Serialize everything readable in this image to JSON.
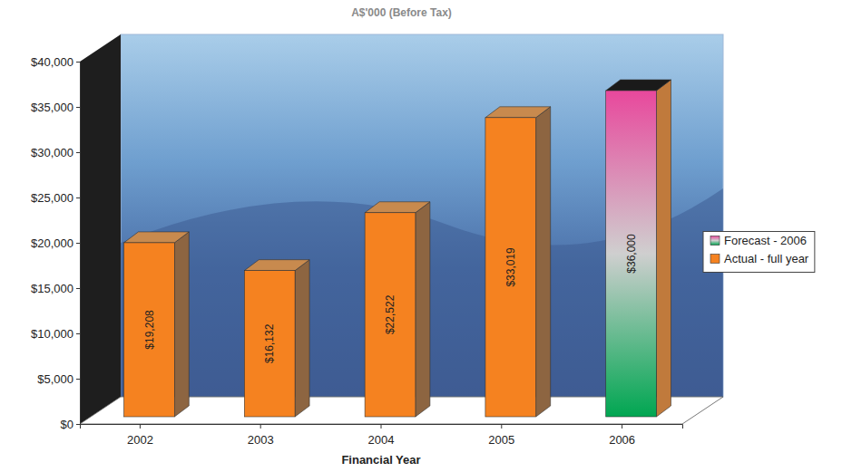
{
  "chart_data": {
    "type": "bar",
    "title": "A$'000 (Before Tax)",
    "xlabel": "Financial Year",
    "categories": [
      "2002",
      "2003",
      "2004",
      "2005",
      "2006"
    ],
    "series": [
      {
        "name": "Forecast - 2006",
        "color": "#e8489c",
        "values": [
          null,
          null,
          null,
          null,
          36000
        ],
        "value_labels": [
          null,
          null,
          null,
          null,
          "$36,000"
        ]
      },
      {
        "name": "Actual - full year",
        "color": "#f58220",
        "values": [
          19208,
          16132,
          22522,
          33019,
          null
        ],
        "value_labels": [
          "$19,208",
          "$16,132",
          "$22,522",
          "$33,019",
          null
        ]
      }
    ],
    "ylim": [
      0,
      40000
    ],
    "yticks": [
      {
        "value": 0,
        "label": "$0"
      },
      {
        "value": 5000,
        "label": "$5,000"
      },
      {
        "value": 10000,
        "label": "$10,000"
      },
      {
        "value": 15000,
        "label": "$15,000"
      },
      {
        "value": 20000,
        "label": "$20,000"
      },
      {
        "value": 25000,
        "label": "$25,000"
      },
      {
        "value": 30000,
        "label": "$30,000"
      },
      {
        "value": 35000,
        "label": "$35,000"
      },
      {
        "value": 40000,
        "label": "$40,000"
      }
    ],
    "grid": false,
    "legend": "right",
    "data_labels": true
  }
}
